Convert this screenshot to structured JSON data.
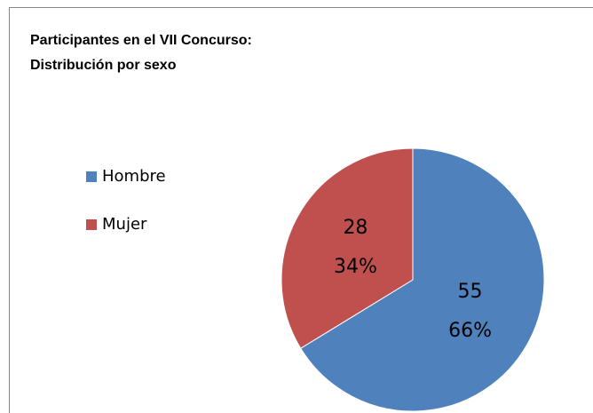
{
  "chart_data": {
    "type": "pie",
    "title_lines": [
      "Participantes en el VII Concurso:",
      "Distribución por sexo"
    ],
    "categories": [
      "Hombre",
      "Mujer"
    ],
    "values": [
      55,
      28
    ],
    "percent_labels": [
      "66%",
      "34%"
    ],
    "colors": [
      "#4f81bd",
      "#c0504d"
    ],
    "legend": "left"
  }
}
